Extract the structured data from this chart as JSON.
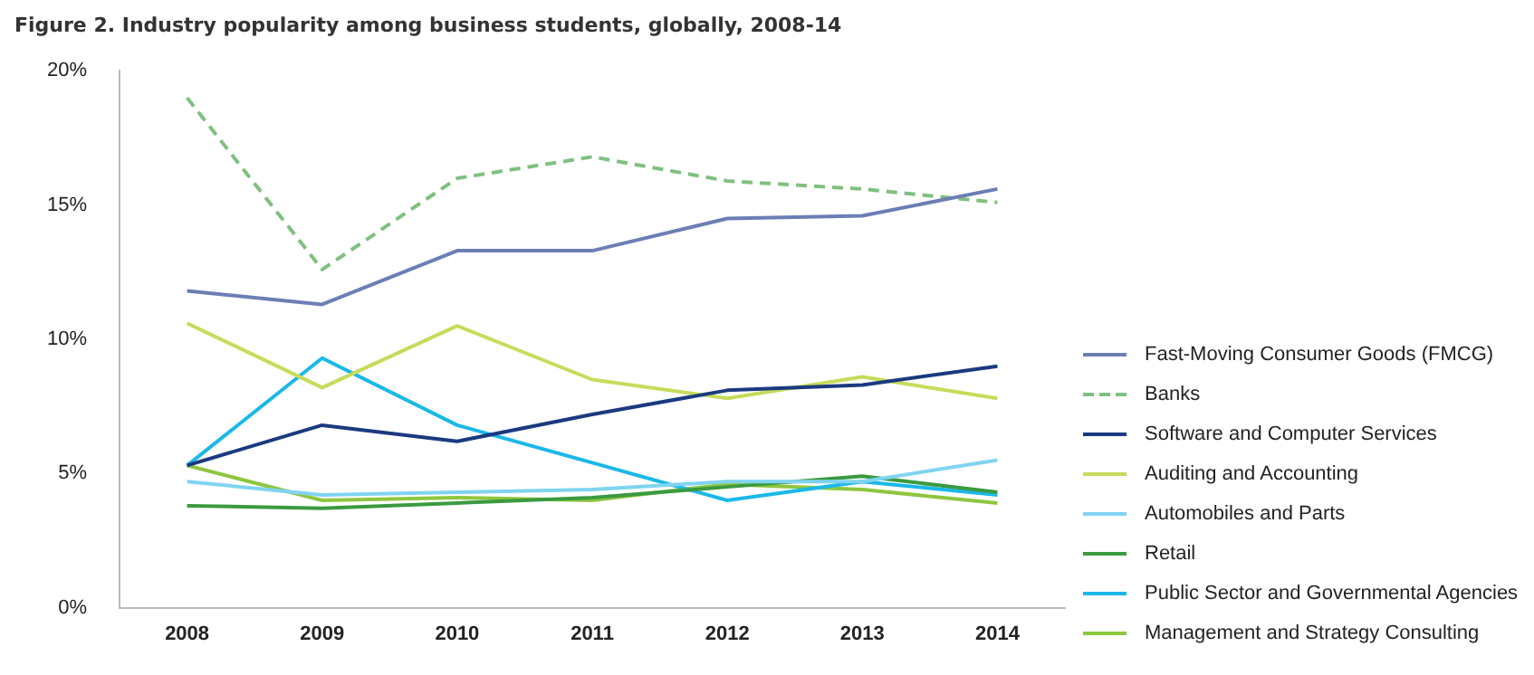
{
  "chart_data": {
    "type": "line",
    "title": "Figure 2. Industry popularity among business students, globally, 2008-14",
    "categories": [
      "2008",
      "2009",
      "2010",
      "2011",
      "2012",
      "2013",
      "2014"
    ],
    "series": [
      {
        "name": "Fast-Moving Consumer Goods (FMCG)",
        "color": "#6b7fb5",
        "values": [
          11.8,
          11.3,
          13.3,
          13.3,
          14.5,
          14.6,
          15.6
        ]
      },
      {
        "name": "Banks",
        "color": "#80c080",
        "line_style": "dashed",
        "values": [
          19.0,
          12.6,
          16.0,
          16.8,
          15.9,
          15.6,
          15.1
        ]
      },
      {
        "name": "Software and Computer Services",
        "color": "#1a3a80",
        "values": [
          5.3,
          6.8,
          6.2,
          7.2,
          8.1,
          8.3,
          9.0
        ]
      },
      {
        "name": "Auditing and Accounting",
        "color": "#c5dc5a",
        "values": [
          10.6,
          8.2,
          10.5,
          8.5,
          7.8,
          8.6,
          7.8
        ]
      },
      {
        "name": "Automobiles and Parts",
        "color": "#7fd4f0",
        "values": [
          4.7,
          4.2,
          4.3,
          4.4,
          4.7,
          4.7,
          5.5
        ]
      },
      {
        "name": "Retail",
        "color": "#3a9a40",
        "values": [
          3.8,
          3.7,
          3.9,
          4.1,
          4.5,
          4.9,
          4.3
        ]
      },
      {
        "name": "Public Sector and Governmental Agencies",
        "color": "#1ab8e8",
        "values": [
          5.3,
          9.3,
          6.8,
          5.4,
          4.0,
          4.7,
          4.2
        ]
      },
      {
        "name": "Management and Strategy Consulting",
        "color": "#8ec63f",
        "values": [
          5.3,
          4.0,
          4.1,
          4.0,
          4.6,
          4.4,
          3.9
        ]
      }
    ],
    "ylim": [
      0,
      20
    ],
    "yticks": [
      {
        "value": 0,
        "label": "0%"
      },
      {
        "value": 5,
        "label": "5%"
      },
      {
        "value": 10,
        "label": "10%"
      },
      {
        "value": 15,
        "label": "15%"
      },
      {
        "value": 20,
        "label": "20%"
      }
    ],
    "grid": false,
    "legend": "right",
    "marker": "none",
    "line_style": "solid"
  }
}
